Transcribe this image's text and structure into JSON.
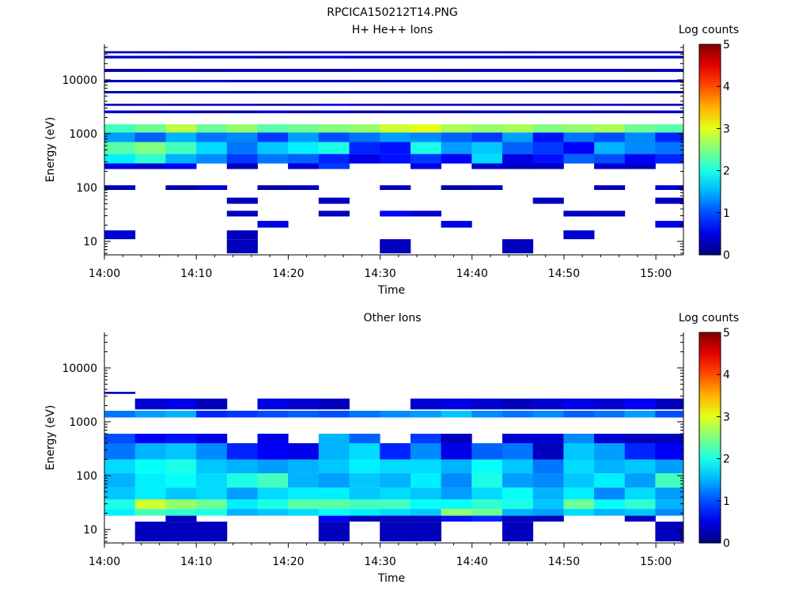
{
  "figure_title": "RPCICA150212T14.PNG",
  "chart_data": [
    {
      "type": "heatmap",
      "title": "H+ He++ Ions",
      "xlabel": "Time",
      "ylabel": "Energy (eV)",
      "colorbar_label": "Log counts",
      "colorbar_ticks": [
        "0",
        "1",
        "2",
        "3",
        "4",
        "5"
      ],
      "clim": [
        0,
        5
      ],
      "xlim_minutes": [
        0,
        63
      ],
      "ylim_log10": [
        0.75,
        4.66
      ],
      "x_ticks": [
        "14:00",
        "14:10",
        "14:20",
        "14:30",
        "14:40",
        "14:50",
        "15:00"
      ],
      "y_ticks": [
        "10",
        "100",
        "1000",
        "10000"
      ],
      "time_bins": 19,
      "bin_width_minutes": 3.33,
      "energy_bands": [
        {
          "e_lo": 1050,
          "e_hi": 1500,
          "values": [
            2.2,
            2.4,
            2.8,
            2.4,
            2.6,
            2.3,
            2.4,
            2.5,
            2.6,
            2.9,
            3.0,
            2.7,
            2.6,
            2.7,
            2.5,
            2.6,
            2.7,
            2.4,
            2.3
          ]
        },
        {
          "e_lo": 700,
          "e_hi": 1050,
          "values": [
            1.4,
            1.1,
            1.5,
            1.2,
            1.3,
            0.9,
            1.4,
            1.0,
            1.2,
            1.4,
            1.3,
            1.1,
            0.9,
            1.4,
            0.7,
            1.2,
            1.0,
            1.3,
            0.8
          ]
        },
        {
          "e_lo": 420,
          "e_hi": 700,
          "values": [
            2.3,
            2.5,
            2.2,
            1.7,
            1.2,
            1.6,
            1.8,
            2.0,
            0.8,
            0.7,
            2.0,
            1.4,
            1.6,
            1.1,
            0.9,
            0.6,
            1.5,
            1.3,
            1.2
          ]
        },
        {
          "e_lo": 280,
          "e_hi": 420,
          "values": [
            1.8,
            2.1,
            1.5,
            1.3,
            0.9,
            1.2,
            1.1,
            0.8,
            0.5,
            0.7,
            0.9,
            0.6,
            1.7,
            0.5,
            0.7,
            1.1,
            1.0,
            0.6,
            0.8
          ]
        },
        {
          "e_lo": 220,
          "e_hi": 280,
          "values": [
            0.5,
            0.4,
            0.6,
            null,
            0.3,
            null,
            0.4,
            0.9,
            null,
            null,
            0.5,
            null,
            0.4,
            0.3,
            0.3,
            null,
            0.4,
            0.3,
            null
          ]
        },
        {
          "e_lo": 90,
          "e_hi": 110,
          "values": [
            0.3,
            null,
            0.2,
            0.4,
            null,
            0.2,
            0.3,
            null,
            null,
            0.3,
            null,
            0.2,
            0.3,
            null,
            null,
            null,
            0.3,
            null,
            0.4
          ]
        },
        {
          "e_lo": 50,
          "e_hi": 65,
          "values": [
            null,
            null,
            null,
            null,
            0.3,
            null,
            null,
            0.3,
            null,
            null,
            null,
            null,
            null,
            null,
            0.3,
            null,
            null,
            null,
            0.3
          ]
        },
        {
          "e_lo": 29,
          "e_hi": 37,
          "values": [
            null,
            null,
            null,
            null,
            0.3,
            null,
            null,
            0.3,
            null,
            0.6,
            0.4,
            null,
            null,
            null,
            null,
            0.3,
            0.3,
            null,
            null
          ]
        },
        {
          "e_lo": 18,
          "e_hi": 24,
          "values": [
            null,
            null,
            null,
            null,
            null,
            0.5,
            null,
            null,
            null,
            null,
            null,
            0.5,
            null,
            null,
            null,
            null,
            null,
            null,
            0.5
          ]
        },
        {
          "e_lo": 11,
          "e_hi": 16,
          "values": [
            0.4,
            null,
            null,
            null,
            0.3,
            null,
            null,
            null,
            null,
            null,
            null,
            null,
            null,
            null,
            null,
            0.4,
            null,
            null,
            null
          ]
        },
        {
          "e_lo": 6,
          "e_hi": 11,
          "values": [
            null,
            null,
            null,
            null,
            0.3,
            null,
            null,
            null,
            null,
            0.3,
            null,
            null,
            null,
            0.3,
            null,
            null,
            null,
            null,
            null
          ]
        },
        {
          "e_lo": 2400,
          "e_hi": 2700,
          "values": [
            0.4,
            0.3,
            0.4,
            0.2,
            0.3,
            0.5,
            0.3,
            0.4,
            0.2,
            0.3,
            0.3,
            0.2,
            0.4,
            0.3,
            0.3,
            0.4,
            0.3,
            0.3,
            0.4
          ]
        },
        {
          "e_lo": 3300,
          "e_hi": 3600,
          "values": [
            0.3,
            0.4,
            0.2,
            0.3,
            0.4,
            0.2,
            0.3,
            0.5,
            0.3,
            0.3,
            0.3,
            0.4,
            0.3,
            0.3,
            0.3,
            0.3,
            0.4,
            0.3,
            0.3
          ]
        },
        {
          "e_lo": 5600,
          "e_hi": 6200,
          "values": [
            0.3,
            0.2,
            0.3,
            0.3,
            0.2,
            0.3,
            0.3,
            0.2,
            0.3,
            0.3,
            0.2,
            0.3,
            0.3,
            0.3,
            0.3,
            0.2,
            0.3,
            0.3,
            0.2
          ]
        },
        {
          "e_lo": 9000,
          "e_hi": 10000,
          "values": [
            0.3,
            0.3,
            0.2,
            0.4,
            0.3,
            0.3,
            0.3,
            0.3,
            0.2,
            0.3,
            0.3,
            0.3,
            0.3,
            0.3,
            0.2,
            0.3,
            0.3,
            0.3,
            0.3
          ]
        },
        {
          "e_lo": 14000,
          "e_hi": 16000,
          "values": [
            0.2,
            0.3,
            0.3,
            0.2,
            0.3,
            0.3,
            0.3,
            0.2,
            0.3,
            0.3,
            0.3,
            0.2,
            0.3,
            0.3,
            0.3,
            0.3,
            0.3,
            0.2,
            0.3
          ]
        },
        {
          "e_lo": 25000,
          "e_hi": 28000,
          "values": [
            0.3,
            0.3,
            0.2,
            0.3,
            0.3,
            0.2,
            0.3,
            0.5,
            0.3,
            0.3,
            0.3,
            0.4,
            0.3,
            0.3,
            0.3,
            0.3,
            0.3,
            0.3,
            0.3
          ]
        },
        {
          "e_lo": 31000,
          "e_hi": 34000,
          "values": [
            0.3,
            0.2,
            0.4,
            0.3,
            0.3,
            0.3,
            0.3,
            0.3,
            0.3,
            0.3,
            0.3,
            0.3,
            0.3,
            0.2,
            0.3,
            0.3,
            0.3,
            0.3,
            0.3
          ]
        }
      ]
    },
    {
      "type": "heatmap",
      "title": "Other Ions",
      "xlabel": "Time",
      "ylabel": "Energy (eV)",
      "colorbar_label": "Log counts",
      "colorbar_ticks": [
        "0",
        "1",
        "2",
        "3",
        "4",
        "5"
      ],
      "clim": [
        0,
        5
      ],
      "xlim_minutes": [
        0,
        63
      ],
      "ylim_log10": [
        0.75,
        4.66
      ],
      "x_ticks": [
        "14:00",
        "14:10",
        "14:20",
        "14:30",
        "14:40",
        "14:50",
        "15:00"
      ],
      "y_ticks": [
        "10",
        "100",
        "1000",
        "10000"
      ],
      "time_bins": 19,
      "bin_width_minutes": 3.33,
      "energy_bands": [
        {
          "e_lo": 3300,
          "e_hi": 3600,
          "values": [
            0.3,
            null,
            null,
            null,
            null,
            null,
            null,
            null,
            null,
            null,
            null,
            null,
            null,
            null,
            null,
            null,
            null,
            null,
            null
          ]
        },
        {
          "e_lo": 1700,
          "e_hi": 2700,
          "values": [
            null,
            0.4,
            0.5,
            0.3,
            null,
            0.5,
            0.4,
            0.3,
            null,
            null,
            0.4,
            0.5,
            0.4,
            0.3,
            0.4,
            0.5,
            0.4,
            0.6,
            0.3
          ]
        },
        {
          "e_lo": 1200,
          "e_hi": 1600,
          "values": [
            1.2,
            1.4,
            1.5,
            0.8,
            0.9,
            1.0,
            1.1,
            1.0,
            1.2,
            1.3,
            1.4,
            1.6,
            1.3,
            1.2,
            1.3,
            1.1,
            1.2,
            1.4,
            1.0
          ]
        },
        {
          "e_lo": 400,
          "e_hi": 600,
          "values": [
            1.0,
            0.6,
            0.7,
            0.5,
            null,
            0.5,
            null,
            1.5,
            1.1,
            null,
            0.9,
            0.3,
            null,
            0.4,
            0.4,
            1.3,
            0.4,
            0.3,
            0.3
          ]
        },
        {
          "e_lo": 200,
          "e_hi": 400,
          "values": [
            1.2,
            1.5,
            1.6,
            1.3,
            0.8,
            0.6,
            0.5,
            1.5,
            1.7,
            0.8,
            1.3,
            0.5,
            1.1,
            1.2,
            0.3,
            1.6,
            1.4,
            0.8,
            0.6
          ]
        },
        {
          "e_lo": 110,
          "e_hi": 200,
          "values": [
            1.7,
            1.9,
            2.0,
            1.6,
            1.5,
            1.4,
            1.5,
            1.6,
            1.8,
            1.7,
            1.7,
            1.5,
            1.9,
            1.6,
            1.2,
            1.7,
            1.5,
            1.6,
            1.4
          ]
        },
        {
          "e_lo": 60,
          "e_hi": 110,
          "values": [
            1.5,
            1.8,
            1.9,
            1.7,
            2.0,
            2.2,
            1.5,
            1.4,
            1.6,
            1.5,
            1.8,
            1.3,
            2.0,
            1.4,
            1.3,
            1.6,
            1.8,
            1.4,
            2.2
          ]
        },
        {
          "e_lo": 36,
          "e_hi": 60,
          "values": [
            1.6,
            1.8,
            1.6,
            1.7,
            1.4,
            1.7,
            1.8,
            1.8,
            1.6,
            1.7,
            1.6,
            1.4,
            1.7,
            1.9,
            1.5,
            1.8,
            1.3,
            1.7,
            1.4
          ]
        },
        {
          "e_lo": 24,
          "e_hi": 36,
          "values": [
            2.0,
            2.9,
            2.6,
            2.4,
            1.8,
            2.0,
            2.3,
            2.3,
            2.2,
            2.2,
            1.9,
            1.9,
            2.1,
            2.0,
            1.6,
            2.4,
            1.9,
            2.1,
            1.5
          ]
        },
        {
          "e_lo": 18,
          "e_hi": 24,
          "values": [
            1.8,
            2.2,
            2.1,
            2.0,
            1.5,
            1.6,
            1.7,
            1.9,
            1.8,
            1.7,
            1.6,
            2.6,
            2.4,
            1.5,
            1.4,
            1.7,
            1.5,
            1.6,
            1.3
          ]
        },
        {
          "e_lo": 14,
          "e_hi": 18,
          "values": [
            null,
            null,
            0.3,
            null,
            null,
            null,
            null,
            0.6,
            0.3,
            0.3,
            0.3,
            0.7,
            0.8,
            0.3,
            0.3,
            null,
            null,
            0.3,
            null
          ]
        },
        {
          "e_lo": 6,
          "e_hi": 14,
          "values": [
            null,
            0.3,
            0.3,
            0.3,
            null,
            null,
            null,
            0.3,
            null,
            0.3,
            0.3,
            null,
            null,
            0.3,
            null,
            null,
            null,
            null,
            0.3
          ]
        }
      ]
    }
  ]
}
